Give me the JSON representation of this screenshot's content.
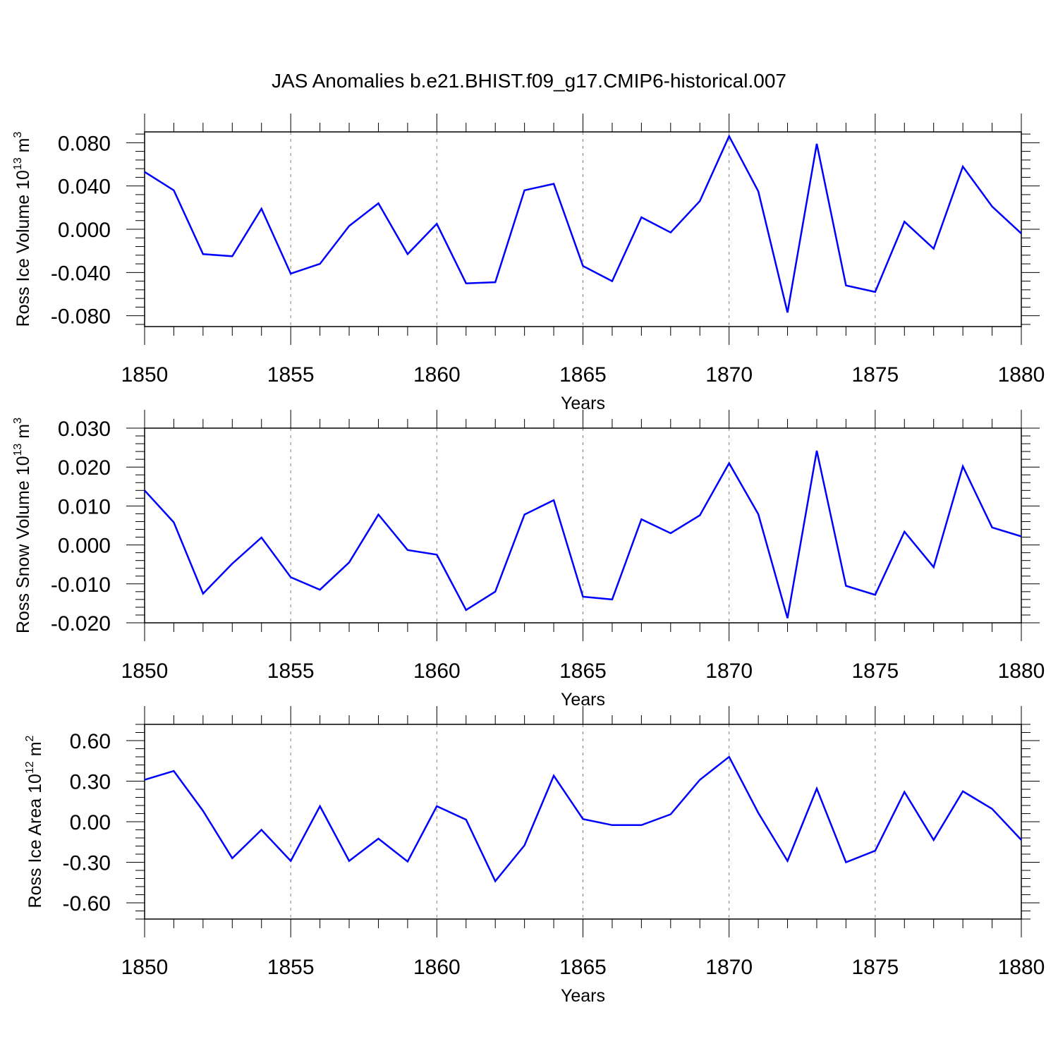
{
  "title": "JAS Anomalies b.e21.BHIST.f09_g17.CMIP6-historical.007",
  "colors": {
    "line": "#0000ff",
    "axes": "#000000",
    "grid": "#808080"
  },
  "chart_data": [
    {
      "type": "line",
      "ylabel": {
        "text": "Ross Ice Volume 10",
        "exp": "13",
        "unit": " m",
        "unit_exp": "3"
      },
      "xlabel": "Years",
      "xlim": [
        1850,
        1880
      ],
      "ylim": [
        -0.09,
        0.09
      ],
      "xticks": [
        "1850",
        "1855",
        "1860",
        "1865",
        "1870",
        "1875",
        "1880"
      ],
      "yticks": [
        {
          "value": 0.08,
          "label": "0.080"
        },
        {
          "value": 0.04,
          "label": "0.040"
        },
        {
          "value": 0.0,
          "label": "0.000"
        },
        {
          "value": -0.04,
          "label": "-0.040"
        },
        {
          "value": -0.08,
          "label": "-0.080"
        }
      ],
      "grid": "vertical dashed at 5-year ticks",
      "series": [
        {
          "name": "Ross Ice Volume",
          "x": [
            1850,
            1851,
            1852,
            1853,
            1854,
            1855,
            1856,
            1857,
            1858,
            1859,
            1860,
            1861,
            1862,
            1863,
            1864,
            1865,
            1866,
            1867,
            1868,
            1869,
            1870,
            1871,
            1872,
            1873,
            1874,
            1875,
            1876,
            1877,
            1878,
            1879,
            1880
          ],
          "values": [
            0.053,
            0.036,
            -0.023,
            -0.025,
            0.019,
            -0.041,
            -0.032,
            0.003,
            0.024,
            -0.023,
            0.005,
            -0.05,
            -0.049,
            0.036,
            0.042,
            -0.034,
            -0.048,
            0.011,
            -0.003,
            0.026,
            0.086,
            0.035,
            -0.077,
            0.079,
            -0.052,
            -0.058,
            0.007,
            -0.018,
            0.058,
            0.021,
            -0.004
          ]
        }
      ]
    },
    {
      "type": "line",
      "ylabel": {
        "text": "Ross Snow Volume 10",
        "exp": "13",
        "unit": " m",
        "unit_exp": "3"
      },
      "xlabel": "Years",
      "xlim": [
        1850,
        1880
      ],
      "ylim": [
        -0.02,
        0.03
      ],
      "xticks": [
        "1850",
        "1855",
        "1860",
        "1865",
        "1870",
        "1875",
        "1880"
      ],
      "yticks": [
        {
          "value": 0.03,
          "label": "0.030"
        },
        {
          "value": 0.02,
          "label": "0.020"
        },
        {
          "value": 0.01,
          "label": "0.010"
        },
        {
          "value": 0.0,
          "label": "0.000"
        },
        {
          "value": -0.01,
          "label": "-0.010"
        },
        {
          "value": -0.02,
          "label": "-0.020"
        }
      ],
      "grid": "vertical dashed at 5-year ticks",
      "series": [
        {
          "name": "Ross Snow Volume",
          "x": [
            1850,
            1851,
            1852,
            1853,
            1854,
            1855,
            1856,
            1857,
            1858,
            1859,
            1860,
            1861,
            1862,
            1863,
            1864,
            1865,
            1866,
            1867,
            1868,
            1869,
            1870,
            1871,
            1872,
            1873,
            1874,
            1875,
            1876,
            1877,
            1878,
            1879,
            1880
          ],
          "values": [
            0.014,
            0.0058,
            -0.0125,
            -0.0048,
            0.0019,
            -0.0083,
            -0.0115,
            -0.0045,
            0.0078,
            -0.0013,
            -0.0025,
            -0.0167,
            -0.012,
            0.0078,
            0.0115,
            -0.0133,
            -0.014,
            0.0066,
            0.003,
            0.0076,
            0.021,
            0.0079,
            -0.0188,
            0.0242,
            -0.0105,
            -0.0128,
            0.0034,
            -0.0057,
            0.0202,
            0.0045,
            0.0022
          ]
        }
      ]
    },
    {
      "type": "line",
      "ylabel": {
        "text": "Ross Ice Area 10",
        "exp": "12",
        "unit": " m",
        "unit_exp": "2"
      },
      "xlabel": "Years",
      "xlim": [
        1850,
        1880
      ],
      "ylim": [
        -0.72,
        0.72
      ],
      "xticks": [
        "1850",
        "1855",
        "1860",
        "1865",
        "1870",
        "1875",
        "1880"
      ],
      "yticks": [
        {
          "value": 0.6,
          "label": "0.60"
        },
        {
          "value": 0.3,
          "label": "0.30"
        },
        {
          "value": 0.0,
          "label": "0.00"
        },
        {
          "value": -0.3,
          "label": "-0.30"
        },
        {
          "value": -0.6,
          "label": "-0.60"
        }
      ],
      "grid": "vertical dashed at 5-year ticks",
      "series": [
        {
          "name": "Ross Ice Area",
          "x": [
            1850,
            1851,
            1852,
            1853,
            1854,
            1855,
            1856,
            1857,
            1858,
            1859,
            1860,
            1861,
            1862,
            1863,
            1864,
            1865,
            1866,
            1867,
            1868,
            1869,
            1870,
            1871,
            1872,
            1873,
            1874,
            1875,
            1876,
            1877,
            1878,
            1879,
            1880
          ],
          "values": [
            0.31,
            0.375,
            0.08,
            -0.27,
            -0.06,
            -0.29,
            0.115,
            -0.29,
            -0.125,
            -0.295,
            0.115,
            0.015,
            -0.44,
            -0.175,
            0.34,
            0.02,
            -0.025,
            -0.025,
            0.055,
            0.31,
            0.48,
            0.065,
            -0.29,
            0.245,
            -0.3,
            -0.215,
            0.22,
            -0.135,
            0.225,
            0.095,
            -0.135
          ]
        }
      ]
    }
  ]
}
